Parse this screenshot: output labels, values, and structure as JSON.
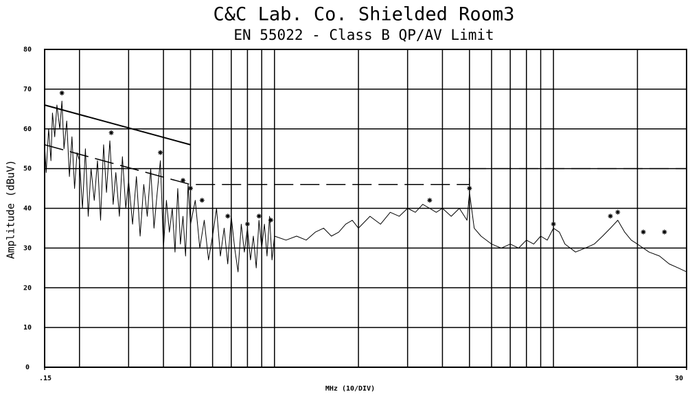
{
  "chart_data": {
    "type": "line",
    "title": "C&C Lab. Co. Shielded Room3",
    "subtitle": "EN 55022 - Class B QP/AV  Limit",
    "y_label": "Amplitude (dBuV)",
    "x_label": "MHz (10/DIV)",
    "xlog": true,
    "xlim": [
      0.15,
      30
    ],
    "ylim": [
      0,
      80
    ],
    "xticks": [
      {
        "value": 0.15,
        "label": ".15"
      },
      30
    ],
    "yticks": [
      0,
      10,
      20,
      30,
      40,
      50,
      60,
      70,
      80
    ],
    "xgrid": [
      0.2,
      0.3,
      0.4,
      0.5,
      0.6,
      0.7,
      0.8,
      0.9,
      1,
      2,
      3,
      4,
      5,
      6,
      7,
      8,
      9,
      10,
      20
    ],
    "grid": true,
    "series": [
      {
        "color": "#000000",
        "style": "solid",
        "width": 1,
        "x": [
          0.15,
          0.152,
          0.155,
          0.158,
          0.16,
          0.163,
          0.166,
          0.17,
          0.173,
          0.176,
          0.18,
          0.184,
          0.188,
          0.192,
          0.196,
          0.2,
          0.205,
          0.21,
          0.215,
          0.22,
          0.226,
          0.232,
          0.238,
          0.244,
          0.25,
          0.257,
          0.264,
          0.27,
          0.278,
          0.285,
          0.293,
          0.3,
          0.31,
          0.32,
          0.33,
          0.34,
          0.35,
          0.36,
          0.37,
          0.38,
          0.39,
          0.4,
          0.41,
          0.42,
          0.43,
          0.44,
          0.45,
          0.46,
          0.47,
          0.48,
          0.49,
          0.5,
          0.52,
          0.54,
          0.56,
          0.58,
          0.6,
          0.62,
          0.64,
          0.66,
          0.68,
          0.7,
          0.72,
          0.74,
          0.76,
          0.78,
          0.8,
          0.82,
          0.84,
          0.86,
          0.88,
          0.9,
          0.92,
          0.94,
          0.96,
          0.98,
          1.0,
          1.1,
          1.2,
          1.3,
          1.4,
          1.5,
          1.6,
          1.7,
          1.8,
          1.9,
          2.0,
          2.2,
          2.4,
          2.6,
          2.8,
          3.0,
          3.2,
          3.4,
          3.6,
          3.8,
          4.0,
          4.3,
          4.6,
          4.9,
          5.0,
          5.2,
          5.5,
          6,
          6.5,
          7,
          7.5,
          8,
          8.5,
          9,
          9.5,
          10,
          10.5,
          11,
          12,
          13,
          14,
          15,
          16,
          17,
          18,
          19,
          20,
          22,
          24,
          26,
          28,
          30
        ],
        "values": [
          56,
          49,
          60,
          52,
          64,
          58,
          66,
          60,
          67,
          55,
          62,
          48,
          58,
          45,
          54,
          52,
          40,
          55,
          38,
          50,
          42,
          52,
          37,
          56,
          44,
          57,
          41,
          49,
          38,
          53,
          40,
          47,
          36,
          48,
          33,
          46,
          38,
          50,
          35,
          44,
          52,
          30,
          42,
          34,
          40,
          29,
          45,
          31,
          38,
          28,
          46,
          36,
          42,
          30,
          37,
          27,
          33,
          40,
          28,
          35,
          26,
          38,
          30,
          24,
          36,
          29,
          35,
          27,
          33,
          25,
          37,
          30,
          36,
          28,
          38,
          27,
          33,
          32,
          33,
          32,
          34,
          35,
          33,
          34,
          36,
          37,
          35,
          38,
          36,
          39,
          38,
          40,
          39,
          41,
          40,
          39,
          40,
          38,
          40,
          37,
          44,
          35,
          33,
          31,
          30,
          31,
          30,
          32,
          31,
          33,
          32,
          35,
          34,
          31,
          29,
          30,
          31,
          33,
          35,
          37,
          34,
          32,
          31,
          29,
          28,
          26,
          25,
          24
        ]
      },
      {
        "color": "#000000",
        "style": "solid",
        "width": 2,
        "x": [
          0.15,
          0.5
        ],
        "values": [
          66,
          56
        ]
      },
      {
        "color": "#000000",
        "style": "dashed",
        "width": 1.5,
        "x": [
          0.15,
          0.5,
          5,
          5,
          30
        ],
        "values": [
          56,
          46,
          46,
          50,
          50
        ]
      },
      {
        "type": "scatter",
        "color": "#000000",
        "x": [
          0.173,
          0.26,
          0.39,
          0.47,
          0.5,
          0.55,
          0.68,
          0.8,
          0.88,
          0.97,
          3.6,
          5,
          10,
          16,
          17,
          21,
          25
        ],
        "values": [
          68,
          58,
          53,
          46,
          44,
          41,
          37,
          35,
          37,
          36,
          41,
          44,
          35,
          37,
          38,
          33,
          33
        ]
      }
    ]
  }
}
